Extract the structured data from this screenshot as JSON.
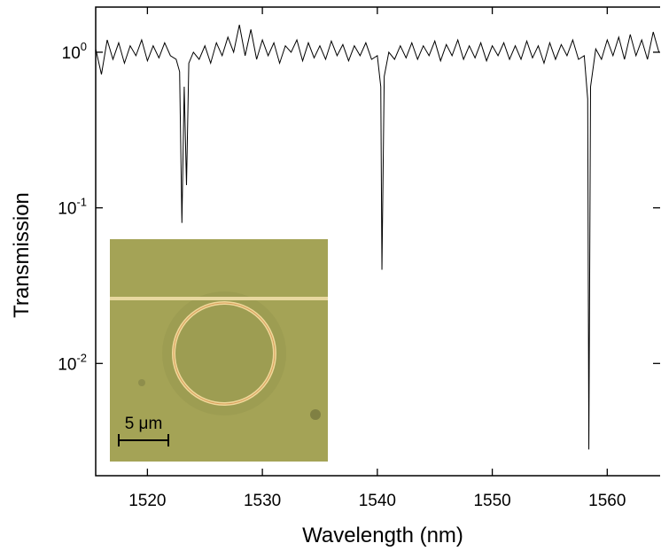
{
  "chart_data": {
    "type": "line",
    "x_label": "Wavelength (nm)",
    "y_label": "Transmission",
    "xlim": [
      1515.5,
      1564.6
    ],
    "xticks": [
      1520,
      1530,
      1540,
      1550,
      1560
    ],
    "ylim": [
      0.0019,
      1.95
    ],
    "log_y": true,
    "yticks": [
      {
        "value": 0.01,
        "label": "10",
        "exponent": "-2"
      },
      {
        "value": 0.1,
        "label": "10",
        "exponent": "-1"
      },
      {
        "value": 1,
        "label": "10",
        "exponent": "0"
      }
    ],
    "color": "#000000",
    "x": [
      1515.5,
      1516.0,
      1516.5,
      1517.0,
      1517.5,
      1518.0,
      1518.5,
      1519.0,
      1519.5,
      1520.0,
      1520.5,
      1521.0,
      1521.5,
      1522.0,
      1522.5,
      1522.8,
      1523.0,
      1523.2,
      1523.4,
      1523.6,
      1524.0,
      1524.5,
      1525.0,
      1525.5,
      1526.0,
      1526.5,
      1527.0,
      1527.5,
      1528.0,
      1528.5,
      1529.0,
      1529.5,
      1530.0,
      1530.5,
      1531.0,
      1531.5,
      1532.0,
      1532.5,
      1533.0,
      1533.5,
      1534.0,
      1534.5,
      1535.0,
      1535.5,
      1536.0,
      1536.5,
      1537.0,
      1537.5,
      1538.0,
      1538.5,
      1539.0,
      1539.5,
      1540.0,
      1540.3,
      1540.4,
      1540.6,
      1541.0,
      1541.5,
      1542.0,
      1542.5,
      1543.0,
      1543.5,
      1544.0,
      1544.5,
      1545.0,
      1545.5,
      1546.0,
      1546.5,
      1547.0,
      1547.5,
      1548.0,
      1548.5,
      1549.0,
      1549.5,
      1550.0,
      1550.5,
      1551.0,
      1551.5,
      1552.0,
      1552.5,
      1553.0,
      1553.5,
      1554.0,
      1554.5,
      1555.0,
      1555.5,
      1556.0,
      1556.5,
      1557.0,
      1557.5,
      1558.0,
      1558.3,
      1558.4,
      1558.55,
      1559.0,
      1559.5,
      1560.0,
      1560.5,
      1561.0,
      1561.5,
      1562.0,
      1562.5,
      1563.0,
      1563.5,
      1564.0,
      1564.5
    ],
    "values": [
      1.05,
      0.72,
      1.2,
      0.9,
      1.15,
      0.85,
      1.1,
      0.95,
      1.2,
      0.88,
      1.1,
      0.92,
      1.15,
      0.95,
      0.9,
      0.75,
      0.08,
      0.6,
      0.14,
      0.85,
      1.0,
      0.9,
      1.1,
      0.85,
      1.15,
      0.95,
      1.25,
      1.0,
      1.5,
      0.95,
      1.4,
      0.9,
      1.2,
      0.95,
      1.15,
      0.85,
      1.1,
      1.0,
      1.2,
      0.88,
      1.15,
      0.92,
      1.1,
      0.9,
      1.18,
      0.95,
      1.12,
      0.88,
      1.1,
      0.95,
      1.15,
      0.9,
      0.95,
      0.6,
      0.04,
      0.7,
      1.0,
      0.9,
      1.1,
      0.92,
      1.15,
      0.9,
      1.1,
      0.95,
      1.18,
      0.88,
      1.12,
      0.95,
      1.2,
      0.9,
      1.1,
      0.92,
      1.15,
      0.88,
      1.1,
      0.95,
      1.15,
      0.9,
      1.1,
      0.9,
      1.18,
      0.92,
      1.1,
      0.85,
      1.15,
      0.9,
      1.12,
      0.95,
      1.2,
      0.9,
      0.95,
      0.5,
      0.0028,
      0.6,
      1.05,
      0.9,
      1.2,
      0.95,
      1.25,
      0.9,
      1.3,
      0.95,
      1.2,
      0.9,
      1.35,
      1.0
    ],
    "inset": {
      "scale_label": "5 μm"
    }
  }
}
